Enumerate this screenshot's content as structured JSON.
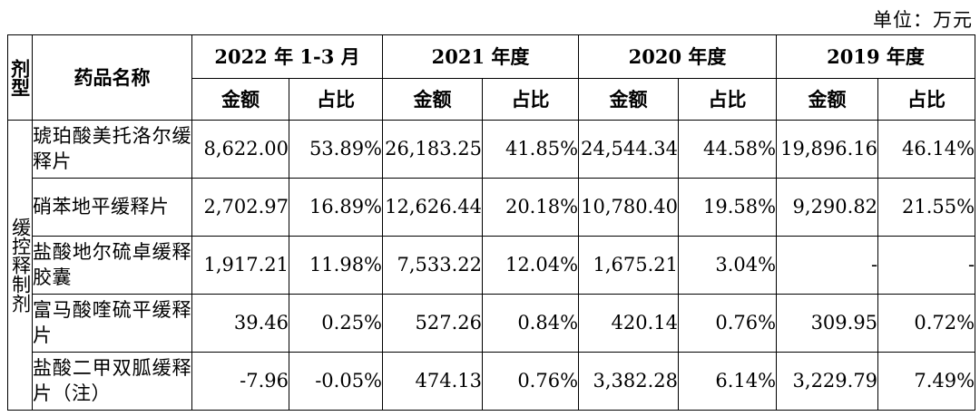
{
  "unit_label": "单位：万元",
  "header": {
    "type_col": "剂型",
    "name_col": "药品名称",
    "periods": [
      "2022 年 1-3 月",
      "2021 年度",
      "2020 年度",
      "2019 年度"
    ],
    "amount_label": "金额",
    "ratio_label": "占比"
  },
  "dosage_form": "缓控释制剂",
  "rows": [
    {
      "name": "琥珀酸美托洛尔缓释片",
      "values": [
        "8,622.00",
        "53.89%",
        "26,183.25",
        "41.85%",
        "24,544.34",
        "44.58%",
        "19,896.16",
        "46.14%"
      ]
    },
    {
      "name": "硝苯地平缓释片",
      "values": [
        "2,702.97",
        "16.89%",
        "12,626.44",
        "20.18%",
        "10,780.40",
        "19.58%",
        "9,290.82",
        "21.55%"
      ]
    },
    {
      "name": "盐酸地尔硫卓缓释胶囊",
      "values": [
        "1,917.21",
        "11.98%",
        "7,533.22",
        "12.04%",
        "1,675.21",
        "3.04%",
        "-",
        "-"
      ]
    },
    {
      "name": "富马酸喹硫平缓释片",
      "values": [
        "39.46",
        "0.25%",
        "527.26",
        "0.84%",
        "420.14",
        "0.76%",
        "309.95",
        "0.72%"
      ]
    },
    {
      "name": "盐酸二甲双胍缓释片（注）",
      "values": [
        "-7.96",
        "-0.05%",
        "474.13",
        "0.76%",
        "3,382.28",
        "6.14%",
        "3,229.79",
        "7.49%"
      ]
    }
  ]
}
